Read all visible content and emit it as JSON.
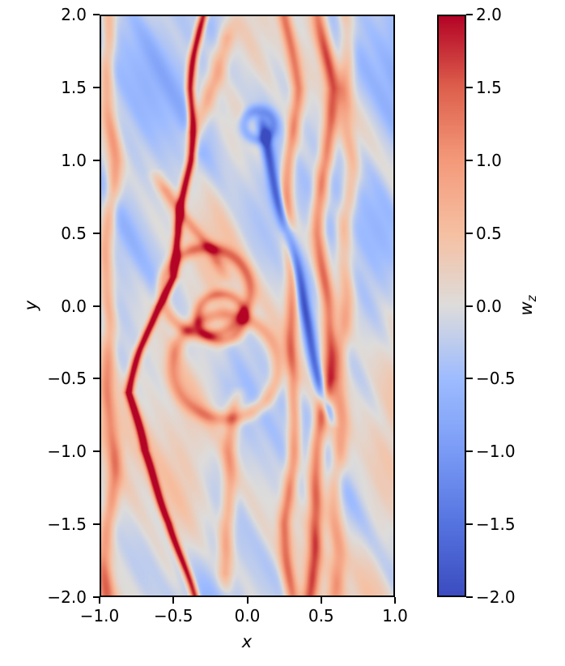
{
  "figure": {
    "background": "#ffffff",
    "axes_edge_color": "#000000"
  },
  "chart_data": {
    "type": "heatmap",
    "title": "",
    "xlabel": "x",
    "ylabel": "y",
    "xlim": [
      -1.0,
      1.0
    ],
    "ylim": [
      -2.0,
      2.0
    ],
    "clim": [
      -2.0,
      2.0
    ],
    "grid": false,
    "x_tick_values": [
      -1.0,
      -0.5,
      0.0,
      0.5,
      1.0
    ],
    "x_tick_labels": [
      "−1.0",
      "−0.5",
      "0.0",
      "0.5",
      "1.0"
    ],
    "y_tick_values": [
      2.0,
      1.5,
      1.0,
      0.5,
      0.0,
      -0.5,
      -1.0,
      -1.5,
      -2.0
    ],
    "y_tick_labels": [
      "2.0",
      "1.5",
      "1.0",
      "0.5",
      "0.0",
      "−0.5",
      "−1.0",
      "−1.5",
      "−2.0"
    ],
    "colorbar": {
      "label_main": "w",
      "label_sub": "z",
      "colormap": "coolwarm",
      "tick_values": [
        2.0,
        1.5,
        1.0,
        0.5,
        0.0,
        -0.5,
        -1.0,
        -1.5,
        -2.0
      ],
      "tick_labels": [
        "2.0",
        "1.5",
        "1.0",
        "0.5",
        "0.0",
        "−0.5",
        "−1.0",
        "−1.5",
        "−2.0"
      ],
      "position": "right"
    },
    "colormap_stops": [
      [
        0.0,
        59,
        76,
        192
      ],
      [
        0.125,
        86,
        116,
        224
      ],
      [
        0.25,
        122,
        155,
        246
      ],
      [
        0.375,
        158,
        188,
        255
      ],
      [
        0.5,
        221,
        220,
        219
      ],
      [
        0.625,
        246,
        192,
        162
      ],
      [
        0.75,
        244,
        154,
        123
      ],
      [
        0.875,
        222,
        97,
        77
      ],
      [
        1.0,
        180,
        4,
        38
      ]
    ],
    "field": {
      "description": "Turbulent z-vorticity field w_z(x,y) with sheared filament structures, mottled weakly-negative background and strong positive shear-layer filaments",
      "grid": {
        "nx": 364,
        "ny": 718
      },
      "base": -0.12,
      "shear": 0.22,
      "noise_octaves": [
        [
          0.35,
          2.0,
          0.8,
          0.5,
          1.3,
          2.2,
          1.9
        ],
        [
          0.28,
          5.0,
          1.2,
          2.1,
          2.6,
          2.9,
          0.7
        ],
        [
          0.22,
          9.0,
          1.5,
          4.2,
          4.8,
          3.6,
          2.9
        ],
        [
          0.16,
          16.0,
          2.0,
          1.3,
          7.5,
          5.0,
          5.1
        ],
        [
          0.1,
          27.0,
          3.0,
          3.7,
          13.0,
          8.0,
          0.3
        ]
      ],
      "filaments": [
        {
          "name": "main-dark-filament",
          "points": [
            [
              2.0,
              -0.31
            ],
            [
              1.5,
              -0.38
            ],
            [
              1.0,
              -0.4
            ],
            [
              0.5,
              -0.46
            ],
            [
              0.2,
              -0.52
            ],
            [
              0.0,
              -0.62
            ],
            [
              -0.3,
              -0.72
            ],
            [
              -0.6,
              -0.8
            ],
            [
              -1.0,
              -0.72
            ],
            [
              -1.5,
              -0.52
            ],
            [
              -2.0,
              -0.38
            ]
          ],
          "amp": 2.4,
          "width": 0.03,
          "wav": [
            0.02,
            6.0,
            1.0
          ]
        },
        {
          "name": "right-band-inner",
          "points": [
            [
              2.0,
              0.27
            ],
            [
              1.5,
              0.33
            ],
            [
              1.0,
              0.3
            ],
            [
              0.5,
              0.27
            ],
            [
              0.0,
              0.3
            ],
            [
              -0.5,
              0.33
            ],
            [
              -1.0,
              0.3
            ],
            [
              -1.5,
              0.27
            ],
            [
              -2.0,
              0.3
            ]
          ],
          "amp": 1.25,
          "width": 0.045,
          "wav": [
            0.02,
            5.0,
            0.3
          ]
        },
        {
          "name": "right-band-outer",
          "points": [
            [
              2.0,
              0.5
            ],
            [
              1.5,
              0.56
            ],
            [
              1.0,
              0.54
            ],
            [
              0.5,
              0.5
            ],
            [
              0.0,
              0.53
            ],
            [
              -0.5,
              0.56
            ],
            [
              -1.0,
              0.5
            ],
            [
              -1.5,
              0.45
            ],
            [
              -2.0,
              0.42
            ]
          ],
          "amp": 1.5,
          "width": 0.05,
          "wav": [
            0.025,
            4.0,
            2.1
          ]
        },
        {
          "name": "right-band-faint",
          "points": [
            [
              2.0,
              0.66
            ],
            [
              1.0,
              0.7
            ],
            [
              0.0,
              0.66
            ],
            [
              -1.0,
              0.62
            ],
            [
              -2.0,
              0.6
            ]
          ],
          "amp": 0.85,
          "width": 0.055,
          "wav": [
            0.02,
            7.0,
            1.4
          ]
        },
        {
          "name": "blue-shear-streak",
          "points": [
            [
              1.4,
              0.06
            ],
            [
              1.0,
              0.16
            ],
            [
              0.5,
              0.28
            ],
            [
              0.0,
              0.38
            ],
            [
              -0.5,
              0.5
            ],
            [
              -0.9,
              0.6
            ]
          ],
          "amp": -1.7,
          "width": 0.04,
          "yrange": [
            -0.85,
            1.35
          ],
          "wav": [
            0.015,
            5.0,
            0.8
          ]
        },
        {
          "name": "left-edge-streak",
          "points": [
            [
              2.0,
              -0.97
            ],
            [
              1.0,
              -0.92
            ],
            [
              0.0,
              -0.97
            ],
            [
              -1.0,
              -0.92
            ],
            [
              -2.0,
              -0.97
            ]
          ],
          "amp": 1.0,
          "width": 0.05,
          "wav": [
            0.02,
            6.0,
            2.2
          ]
        },
        {
          "name": "upper-companion-filament",
          "points": [
            [
              2.0,
              -0.13
            ],
            [
              1.6,
              -0.22
            ],
            [
              1.2,
              -0.34
            ]
          ],
          "amp": 0.9,
          "width": 0.06,
          "yrange": [
            1.05,
            2.0
          ],
          "wav": [
            0.02,
            4.0,
            0.5
          ]
        },
        {
          "name": "lower-center-streak",
          "points": [
            [
              -0.6,
              -0.05
            ],
            [
              -1.0,
              -0.13
            ],
            [
              -1.5,
              -0.15
            ],
            [
              -2.0,
              -0.12
            ]
          ],
          "amp": 0.95,
          "width": 0.05,
          "yrange": [
            -2.0,
            -0.55
          ],
          "wav": [
            0.02,
            5.0,
            1.7
          ]
        },
        {
          "name": "mid-upper-arc",
          "points": [
            [
              0.9,
              -0.62
            ],
            [
              0.6,
              -0.4
            ],
            [
              0.4,
              -0.25
            ],
            [
              0.2,
              -0.18
            ]
          ],
          "amp": 0.9,
          "width": 0.05,
          "yrange": [
            0.15,
            0.95
          ],
          "wav": [
            0.02,
            6.0,
            0.9
          ]
        }
      ],
      "rings": [
        {
          "name": "vortex-ring-large",
          "cx": -0.28,
          "cy": 0.1,
          "r": 0.3,
          "width": 0.045,
          "amp": 1.1
        },
        {
          "name": "vortex-ring-small",
          "cx": -0.18,
          "cy": -0.08,
          "r": 0.16,
          "width": 0.04,
          "amp": 1.0
        },
        {
          "name": "lower-arc",
          "cx": -0.15,
          "cy": -0.42,
          "r": 0.36,
          "width": 0.05,
          "amp": 0.9
        },
        {
          "name": "upper-eddy-core",
          "cx": 0.08,
          "cy": 1.25,
          "r": 0.1,
          "width": 0.04,
          "amp": -0.8
        }
      ]
    }
  }
}
